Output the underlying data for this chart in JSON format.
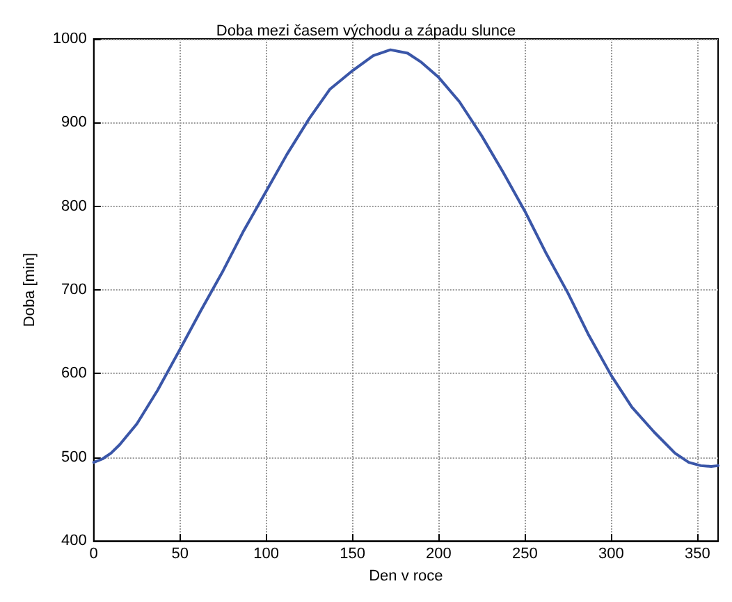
{
  "chart_data": {
    "type": "line",
    "title": "Doba mezi časem východu a západu slunce",
    "xlabel": "Den v roce",
    "ylabel": "Doba [min]",
    "x": [
      0,
      5,
      10,
      15,
      25,
      37,
      50,
      62,
      75,
      87,
      100,
      112,
      125,
      137,
      150,
      162,
      172,
      182,
      190,
      200,
      212,
      225,
      237,
      250,
      262,
      275,
      287,
      300,
      312,
      325,
      337,
      345,
      352,
      358,
      362
    ],
    "series": [
      {
        "color": "#3a56a8",
        "values": [
          494,
          498,
          505,
          515,
          540,
          580,
          629,
          675,
          723,
          771,
          818,
          862,
          905,
          940,
          962,
          980,
          987,
          983,
          972,
          954,
          925,
          884,
          842,
          794,
          745,
          696,
          646,
          598,
          560,
          530,
          505,
          494,
          490,
          489,
          490
        ]
      }
    ],
    "xlim": [
      0,
      362
    ],
    "xticks": [
      0,
      50,
      100,
      150,
      200,
      250,
      300,
      350
    ],
    "ylim": [
      400,
      1000
    ],
    "yticks": [
      400,
      500,
      600,
      700,
      800,
      900,
      1000
    ],
    "grid": true,
    "marker": "none",
    "line_style": "solid"
  }
}
